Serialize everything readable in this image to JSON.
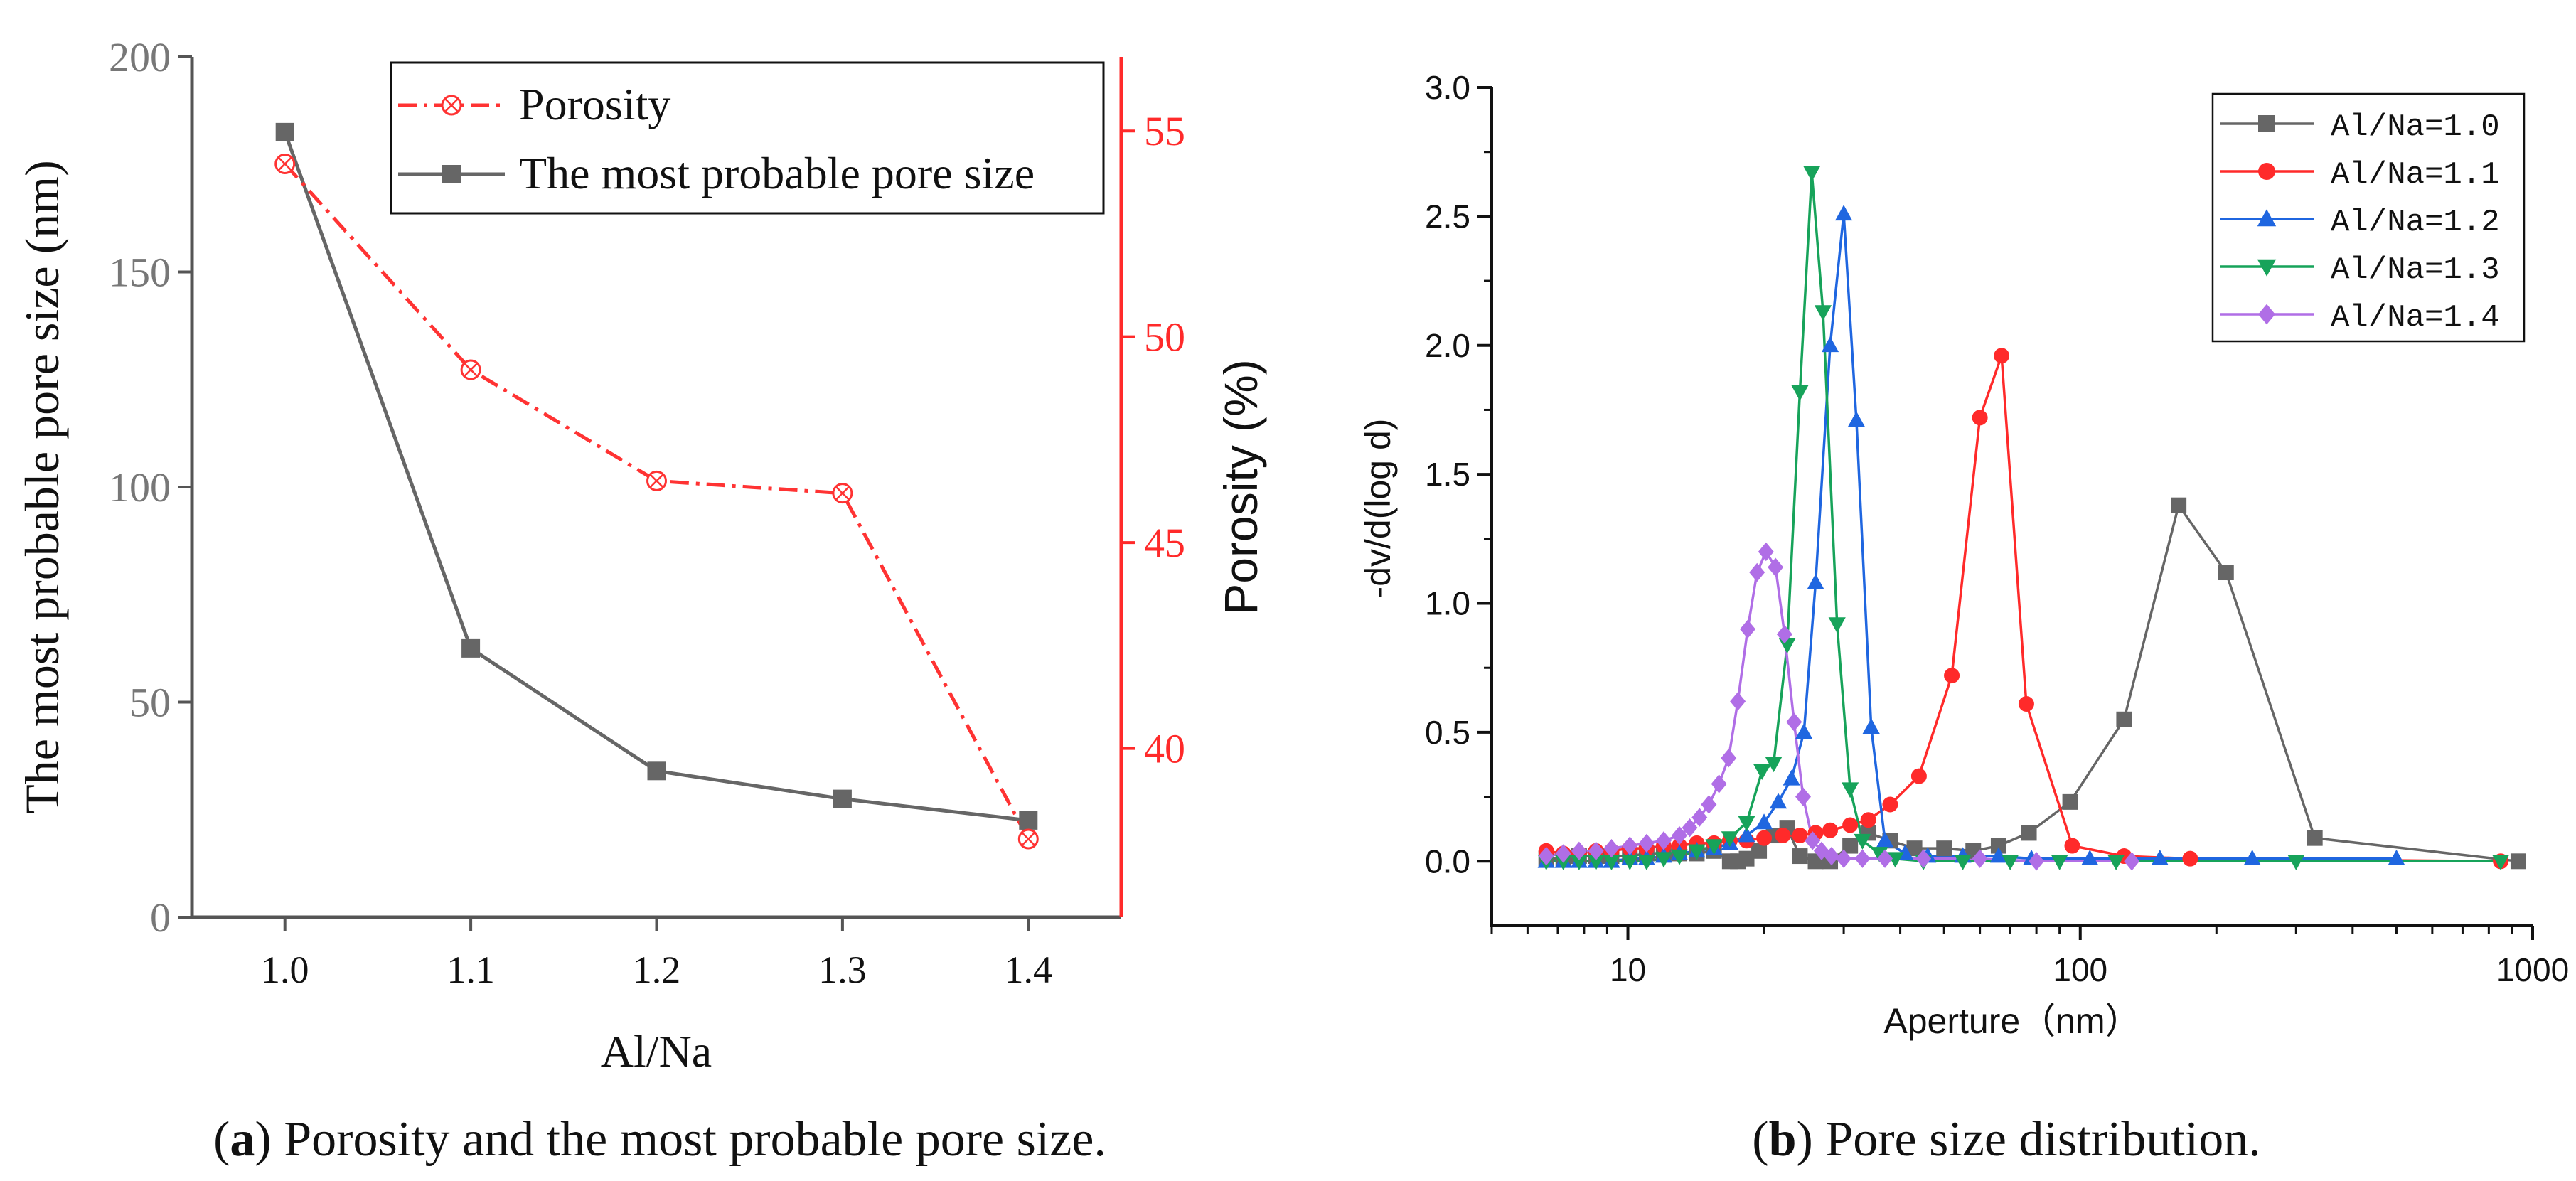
{
  "panels": {
    "a_letter": "a",
    "a_caption": "Porosity and the most probable pore size.",
    "b_letter": "b",
    "b_caption": "Pore size distribution."
  },
  "chart_data": [
    {
      "type": "line",
      "title": "",
      "xlabel": "Al/Na",
      "ylabel_left": "The most probable pore size (nm)",
      "ylabel_right": "Porosity (%)",
      "x": [
        1.0,
        1.1,
        1.2,
        1.3,
        1.4
      ],
      "xlim": [
        0.95,
        1.45
      ],
      "ylim_left": [
        0,
        200
      ],
      "ylim_right": [
        35.9,
        56.8
      ],
      "xticks": [
        "1.0",
        "1.1",
        "1.2",
        "1.3",
        "1.4"
      ],
      "yticks_left": [
        "0",
        "50",
        "100",
        "150",
        "200"
      ],
      "yticks_right": [
        "40",
        "45",
        "50",
        "55"
      ],
      "colors": {
        "porosity": "#ff3333",
        "pore_size": "#666666",
        "left_axis_text": "#777777",
        "right_axis": "#ff2a2a"
      },
      "legend_position": "top-right",
      "series": [
        {
          "name": "Porosity",
          "axis": "right",
          "style": "dash-dot",
          "marker": "circle-x",
          "values": [
            54.2,
            49.2,
            46.5,
            46.2,
            37.8
          ]
        },
        {
          "name": "The most probable pore size",
          "axis": "left",
          "style": "solid",
          "marker": "square",
          "values": [
            182.5,
            62.5,
            34.0,
            27.5,
            22.5
          ]
        }
      ]
    },
    {
      "type": "line",
      "title": "",
      "xlabel": "Aperture（nm）",
      "ylabel": "-dv/d(log d)",
      "xscale": "log",
      "xlim": [
        5,
        1000
      ],
      "ylim": [
        -0.25,
        3.0
      ],
      "xticks": [
        "10",
        "100",
        "1000"
      ],
      "yticks": [
        "0.0",
        "0.5",
        "1.0",
        "1.5",
        "2.0",
        "2.5",
        "3.0"
      ],
      "legend_position": "top-right",
      "series": [
        {
          "name": "Al/Na=1.0",
          "color": "#666666",
          "marker": "square",
          "x": [
            6.6,
            7.2,
            7.8,
            8.5,
            9.2,
            10.1,
            11,
            12,
            13,
            14.2,
            15.5,
            16.8,
            17.5,
            18.3,
            19.5,
            21,
            22.5,
            24,
            26,
            28,
            31,
            34,
            38,
            43,
            50,
            58,
            66,
            77,
            95,
            125,
            165,
            210,
            330,
            930
          ],
          "y": [
            0.01,
            0.01,
            0.02,
            0.02,
            0.02,
            0.02,
            0.03,
            0.03,
            0.03,
            0.03,
            0.04,
            0.0,
            0.0,
            0.01,
            0.04,
            0.1,
            0.13,
            0.02,
            0.0,
            0.0,
            0.06,
            0.11,
            0.08,
            0.05,
            0.05,
            0.04,
            0.06,
            0.11,
            0.23,
            0.55,
            1.38,
            1.12,
            0.09,
            0.0
          ]
        },
        {
          "name": "Al/Na=1.1",
          "color": "#ff2a2a",
          "marker": "circle",
          "x": [
            6.6,
            7.2,
            7.8,
            8.5,
            9.2,
            10.1,
            11,
            12,
            13,
            14.2,
            15.5,
            16.8,
            18.3,
            20,
            22,
            24,
            26,
            28,
            31,
            34,
            38,
            44,
            52,
            60,
            67,
            76,
            96,
            125,
            175,
            850
          ],
          "y": [
            0.04,
            0.03,
            0.03,
            0.04,
            0.04,
            0.05,
            0.05,
            0.06,
            0.06,
            0.07,
            0.07,
            0.08,
            0.08,
            0.09,
            0.1,
            0.1,
            0.11,
            0.12,
            0.14,
            0.16,
            0.22,
            0.33,
            0.72,
            1.72,
            1.96,
            0.61,
            0.06,
            0.02,
            0.01,
            0.0
          ]
        },
        {
          "name": "Al/Na=1.2",
          "color": "#1f66e0",
          "marker": "triangle-up",
          "x": [
            6.6,
            7.2,
            7.8,
            8.5,
            9.2,
            10.1,
            11,
            12,
            13,
            14.2,
            15.5,
            16.8,
            18.3,
            20,
            21.5,
            23,
            24.5,
            26,
            28,
            30,
            32,
            34.5,
            37,
            41,
            46,
            55,
            66,
            78,
            105,
            150,
            240,
            500
          ],
          "y": [
            0.0,
            0.0,
            0.0,
            0.0,
            0.0,
            0.01,
            0.01,
            0.02,
            0.03,
            0.04,
            0.05,
            0.07,
            0.1,
            0.15,
            0.23,
            0.32,
            0.5,
            1.08,
            2.0,
            2.51,
            1.71,
            0.52,
            0.08,
            0.03,
            0.02,
            0.02,
            0.02,
            0.01,
            0.01,
            0.01,
            0.01,
            0.01
          ]
        },
        {
          "name": "Al/Na=1.3",
          "color": "#17a35a",
          "marker": "triangle-down",
          "x": [
            6.6,
            7.2,
            7.8,
            8.5,
            9.2,
            10.1,
            11,
            12,
            13,
            14.2,
            15.5,
            16.8,
            18.3,
            19.8,
            21,
            22.5,
            24,
            25.5,
            27,
            29,
            31,
            33,
            36,
            39,
            45,
            55,
            70,
            90,
            120,
            300,
            850
          ],
          "y": [
            0.0,
            0.0,
            0.0,
            0.0,
            0.0,
            0.0,
            0.0,
            0.01,
            0.02,
            0.04,
            0.06,
            0.09,
            0.15,
            0.35,
            0.38,
            0.84,
            1.82,
            2.67,
            2.13,
            0.92,
            0.28,
            0.08,
            0.03,
            0.01,
            0.0,
            0.0,
            0.0,
            0.0,
            0.0,
            0.0,
            0.0
          ]
        },
        {
          "name": "Al/Na=1.4",
          "color": "#b06ee6",
          "marker": "diamond",
          "x": [
            6.6,
            7.2,
            7.8,
            8.5,
            9.2,
            10.1,
            11,
            12,
            13,
            13.7,
            14.4,
            15.1,
            15.9,
            16.7,
            17.5,
            18.4,
            19.3,
            20.2,
            21.2,
            22.2,
            23.3,
            24.4,
            25.6,
            26.8,
            28.2,
            30,
            33,
            37,
            45,
            60,
            80,
            130
          ],
          "y": [
            0.02,
            0.03,
            0.04,
            0.04,
            0.05,
            0.06,
            0.07,
            0.08,
            0.1,
            0.13,
            0.17,
            0.22,
            0.3,
            0.4,
            0.62,
            0.9,
            1.12,
            1.2,
            1.14,
            0.88,
            0.54,
            0.25,
            0.08,
            0.04,
            0.02,
            0.01,
            0.01,
            0.01,
            0.01,
            0.01,
            0.0,
            0.0
          ]
        }
      ]
    }
  ]
}
